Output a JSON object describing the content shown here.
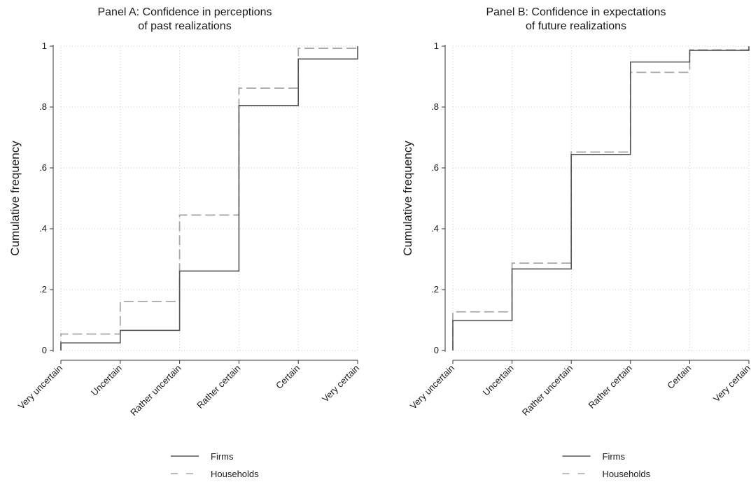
{
  "chart_data": [
    {
      "type": "line",
      "title": [
        "Panel A: Confidence in perceptions",
        "of past realizations"
      ],
      "ylabel": "Cumulative frequency",
      "xlabel": "",
      "categories": [
        "Very uncertain",
        "Uncertain",
        "Rather uncertain",
        "Rather certain",
        "Certain",
        "Very certain"
      ],
      "ylim": [
        0,
        1
      ],
      "yticks": [
        {
          "value": 0,
          "label": "0"
        },
        {
          "value": 0.2,
          "label": ".2"
        },
        {
          "value": 0.4,
          "label": ".4"
        },
        {
          "value": 0.6,
          "label": ".6"
        },
        {
          "value": 0.8,
          "label": ".8"
        },
        {
          "value": 1,
          "label": "1"
        }
      ],
      "grid": true,
      "step": true,
      "series": [
        {
          "name": "Firms",
          "style": "solid",
          "color": "#555555",
          "values": [
            0.025,
            0.066,
            0.261,
            0.805,
            0.958,
            1.0
          ]
        },
        {
          "name": "Households",
          "style": "dashed",
          "color": "#a8a8a8",
          "values": [
            0.054,
            0.161,
            0.445,
            0.862,
            0.993,
            1.0
          ]
        }
      ]
    },
    {
      "type": "line",
      "title": [
        "Panel B: Confidence in expectations",
        "of future realizations"
      ],
      "ylabel": "Cumulative frequency",
      "xlabel": "",
      "categories": [
        "Very uncertain",
        "Uncertain",
        "Rather uncertain",
        "Rather certain",
        "Certain",
        "Very certain"
      ],
      "ylim": [
        0,
        1
      ],
      "yticks": [
        {
          "value": 0,
          "label": "0"
        },
        {
          "value": 0.2,
          "label": ".2"
        },
        {
          "value": 0.4,
          "label": ".4"
        },
        {
          "value": 0.6,
          "label": ".6"
        },
        {
          "value": 0.8,
          "label": ".8"
        },
        {
          "value": 1,
          "label": "1"
        }
      ],
      "grid": true,
      "step": true,
      "series": [
        {
          "name": "Firms",
          "style": "solid",
          "color": "#555555",
          "values": [
            0.098,
            0.268,
            0.644,
            0.948,
            0.986,
            1.0
          ]
        },
        {
          "name": "Households",
          "style": "dashed",
          "color": "#a8a8a8",
          "values": [
            0.127,
            0.287,
            0.652,
            0.914,
            0.988,
            1.0
          ]
        }
      ]
    }
  ],
  "legend": {
    "placement": "bottom-center",
    "items": [
      {
        "label": "Firms",
        "style": "solid",
        "color": "#555555"
      },
      {
        "label": "Households",
        "style": "dashed",
        "color": "#a8a8a8"
      }
    ]
  }
}
